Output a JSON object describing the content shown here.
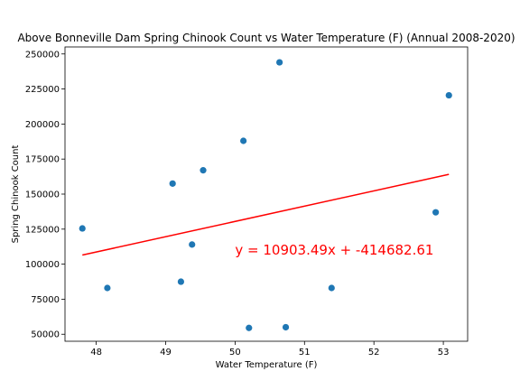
{
  "chart_data": {
    "type": "scatter",
    "title": "Above Bonneville Dam Spring Chinook Count vs Water Temperature (F) (Annual 2008-2020)",
    "xlabel": "Water Temperature (F)",
    "ylabel": "Spring Chinook Count",
    "xlim": [
      47.55,
      53.35
    ],
    "ylim": [
      45000,
      255000
    ],
    "xticks": [
      48,
      49,
      50,
      51,
      52,
      53
    ],
    "yticks": [
      50000,
      75000,
      100000,
      125000,
      150000,
      175000,
      200000,
      225000,
      250000
    ],
    "point_color": "#1f77b4",
    "line_color": "#ff0000",
    "points": [
      {
        "x": 47.8,
        "y": 125500
      },
      {
        "x": 48.16,
        "y": 83000
      },
      {
        "x": 49.1,
        "y": 157500
      },
      {
        "x": 49.22,
        "y": 87500
      },
      {
        "x": 49.38,
        "y": 114000
      },
      {
        "x": 49.54,
        "y": 167000
      },
      {
        "x": 50.12,
        "y": 188000
      },
      {
        "x": 50.2,
        "y": 54500
      },
      {
        "x": 50.64,
        "y": 244000
      },
      {
        "x": 50.73,
        "y": 55000
      },
      {
        "x": 51.39,
        "y": 83000
      },
      {
        "x": 52.89,
        "y": 137000
      },
      {
        "x": 53.08,
        "y": 220500
      }
    ],
    "regression": {
      "slope": 10903.49,
      "intercept": -414682.61,
      "x_range": [
        47.8,
        53.08
      ]
    },
    "annotation": {
      "text": "y = 10903.49x + -414682.61",
      "x": 50.0,
      "y": 110000
    }
  }
}
